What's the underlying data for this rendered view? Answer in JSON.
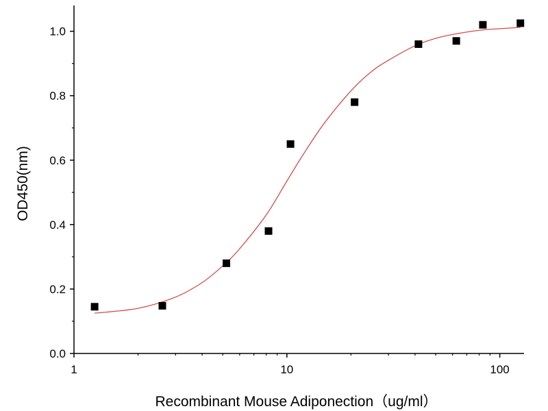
{
  "chart_data": {
    "type": "scatter",
    "title": "",
    "xlabel": "Recombinant  Mouse Adiponection（ug/ml）",
    "ylabel": "OD450(nm)",
    "x_scale": "log",
    "xlim": [
      1,
      130
    ],
    "ylim": [
      0,
      1.08
    ],
    "x_ticks": [
      1,
      10,
      100
    ],
    "x_tick_labels": [
      "1",
      "10",
      "100"
    ],
    "y_ticks": [
      0,
      0.2,
      0.4,
      0.6,
      0.8,
      1.0
    ],
    "y_tick_labels": [
      "0.0",
      "0.2",
      "0.4",
      "0.6",
      "0.8",
      "1.0"
    ],
    "grid": false,
    "legend": "none",
    "series": [
      {
        "marker": "square",
        "color": "#000000",
        "x": [
          1.25,
          2.6,
          5.2,
          8.2,
          10.4,
          20.8,
          41.5,
          62.5,
          83.3,
          125
        ],
        "y": [
          0.145,
          0.148,
          0.28,
          0.38,
          0.65,
          0.78,
          0.96,
          0.97,
          1.02,
          1.025
        ]
      },
      {
        "style": "fit-curve",
        "color": "#d94a4a",
        "x": [
          1.25,
          2,
          3,
          4,
          5,
          6,
          8,
          10,
          12,
          15,
          20,
          25,
          30,
          40,
          50,
          60,
          80,
          100,
          125
        ],
        "y": [
          0.125,
          0.14,
          0.175,
          0.22,
          0.272,
          0.325,
          0.43,
          0.535,
          0.62,
          0.715,
          0.815,
          0.875,
          0.91,
          0.955,
          0.978,
          0.99,
          1.003,
          1.008,
          1.012
        ]
      }
    ]
  }
}
